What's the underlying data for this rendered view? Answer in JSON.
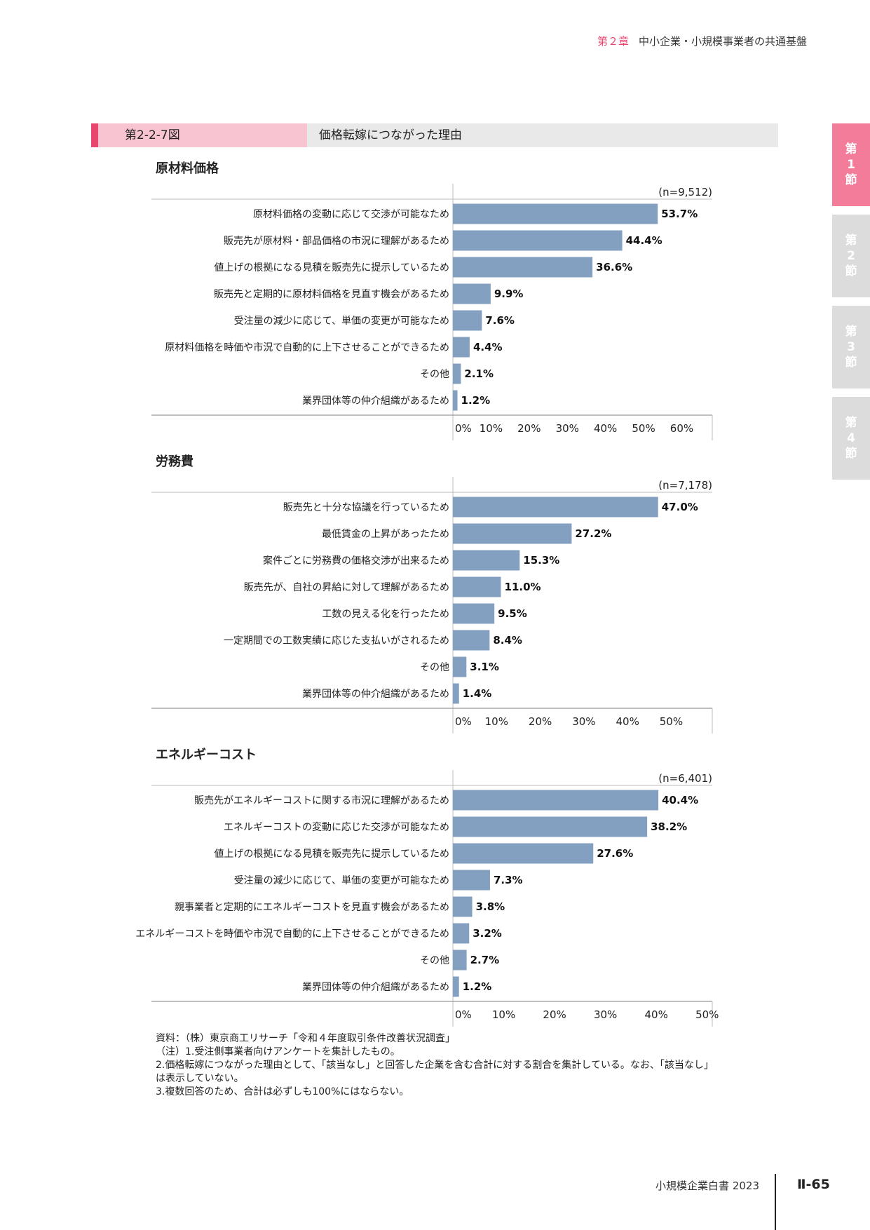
{
  "header": {
    "chapter": "第２章",
    "title": "中小企業・小規模事業者の共通基盤"
  },
  "figure": {
    "number": "第2-2-7図",
    "title": "価格転嫁につながった理由"
  },
  "side_tabs": [
    {
      "label": "第1節",
      "active": true
    },
    {
      "label": "第2節",
      "active": false
    },
    {
      "label": "第3節",
      "active": false
    },
    {
      "label": "第4節",
      "active": false
    }
  ],
  "chart_data": [
    {
      "type": "bar",
      "orientation": "horizontal",
      "title": "原材料価格",
      "n_label": "(n=9,512)",
      "categories": [
        "原材料価格の変動に応じて交渉が可能なため",
        "販売先が原材料・部品価格の市況に理解があるため",
        "値上げの根拠になる見積を販売先に提示しているため",
        "販売先と定期的に原材料価格を見直す機会があるため",
        "受注量の減少に応じて、単価の変更が可能なため",
        "原材料価格を時価や市況で自動的に上下させることができるため",
        "その他",
        "業界団体等の仲介組織があるため"
      ],
      "values": [
        53.7,
        44.4,
        36.6,
        9.9,
        7.6,
        4.4,
        2.1,
        1.2
      ],
      "value_labels": [
        "53.7%",
        "44.4%",
        "36.6%",
        "9.9%",
        "7.6%",
        "4.4%",
        "2.1%",
        "1.2%"
      ],
      "xlim": [
        0,
        68
      ],
      "ticks": [
        0,
        10,
        20,
        30,
        40,
        50,
        60
      ],
      "tick_labels": [
        "0%",
        "10%",
        "20%",
        "30%",
        "40%",
        "50%",
        "60%"
      ],
      "bar_color": "#84a0c1"
    },
    {
      "type": "bar",
      "orientation": "horizontal",
      "title": "労務費",
      "n_label": "(n=7,178)",
      "categories": [
        "販売先と十分な協議を行っているため",
        "最低賃金の上昇があったため",
        "案件ごとに労務費の価格交渉が出来るため",
        "販売先が、自社の昇給に対して理解があるため",
        "工数の見える化を行ったため",
        "一定期間での工数実績に応じた支払いがされるため",
        "その他",
        "業界団体等の仲介組織があるため"
      ],
      "values": [
        47.0,
        27.2,
        15.3,
        11.0,
        9.5,
        8.4,
        3.1,
        1.4
      ],
      "value_labels": [
        "47.0%",
        "27.2%",
        "15.3%",
        "11.0%",
        "9.5%",
        "8.4%",
        "3.1%",
        "1.4%"
      ],
      "xlim": [
        0,
        59.4
      ],
      "ticks": [
        0,
        10,
        20,
        30,
        40,
        50
      ],
      "tick_labels": [
        "0%",
        "10%",
        "20%",
        "30%",
        "40%",
        "50%"
      ],
      "bar_color": "#84a0c1"
    },
    {
      "type": "bar",
      "orientation": "horizontal",
      "title": "エネルギーコスト",
      "n_label": "(n=6,401)",
      "categories": [
        "販売先がエネルギーコストに関する市況に理解があるため",
        "エネルギーコストの変動に応じた交渉が可能なため",
        "値上げの根拠になる見積を販売先に提示しているため",
        "受注量の減少に応じて、単価の変更が可能なため",
        "親事業者と定期的にエネルギーコストを見直す機会があるため",
        "エネルギーコストを時価や市況で自動的に上下させることができるため",
        "その他",
        "業界団体等の仲介組織があるため"
      ],
      "values": [
        40.4,
        38.2,
        27.6,
        7.3,
        3.8,
        3.2,
        2.7,
        1.2
      ],
      "value_labels": [
        "40.4%",
        "38.2%",
        "27.6%",
        "7.3%",
        "3.8%",
        "3.2%",
        "2.7%",
        "1.2%"
      ],
      "xlim": [
        0,
        51
      ],
      "ticks": [
        0,
        10,
        20,
        30,
        40,
        50
      ],
      "tick_labels": [
        "0%",
        "10%",
        "20%",
        "30%",
        "40%",
        "50%"
      ],
      "bar_color": "#84a0c1"
    }
  ],
  "notes": [
    "資料：（株）東京商工リサーチ「令和４年度取引条件改善状況調査」",
    "（注）1.受注側事業者向けアンケートを集計したもの。",
    "2.価格転嫁につながった理由として、「該当なし」と回答した企業を含む合計に対する割合を集計している。なお、「該当なし」は表示していない。",
    "3.複数回答のため、合計は必ずしも100%にはならない。"
  ],
  "footer": {
    "publication": "小規模企業白書 2023",
    "page": "Ⅱ-65"
  }
}
